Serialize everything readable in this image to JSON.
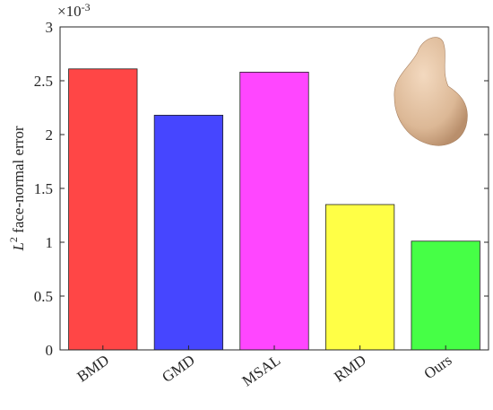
{
  "chart_data": {
    "type": "bar",
    "y_label": {
      "base": "L",
      "sup": "2",
      "text": " face-normal error"
    },
    "y_multiplier": {
      "base": "×10",
      "exponent": "-3"
    },
    "categories": [
      "BMD",
      "GMD",
      "MSAL",
      "RMD",
      "Ours"
    ],
    "values": [
      2.61,
      2.18,
      2.58,
      1.35,
      1.01
    ],
    "colors": [
      "#ff4646",
      "#4646ff",
      "#ff46ff",
      "#ffff46",
      "#46ff46"
    ],
    "ylim": [
      0,
      3
    ],
    "yticks": [
      0,
      0.5,
      1,
      1.5,
      2,
      2.5,
      3
    ]
  }
}
